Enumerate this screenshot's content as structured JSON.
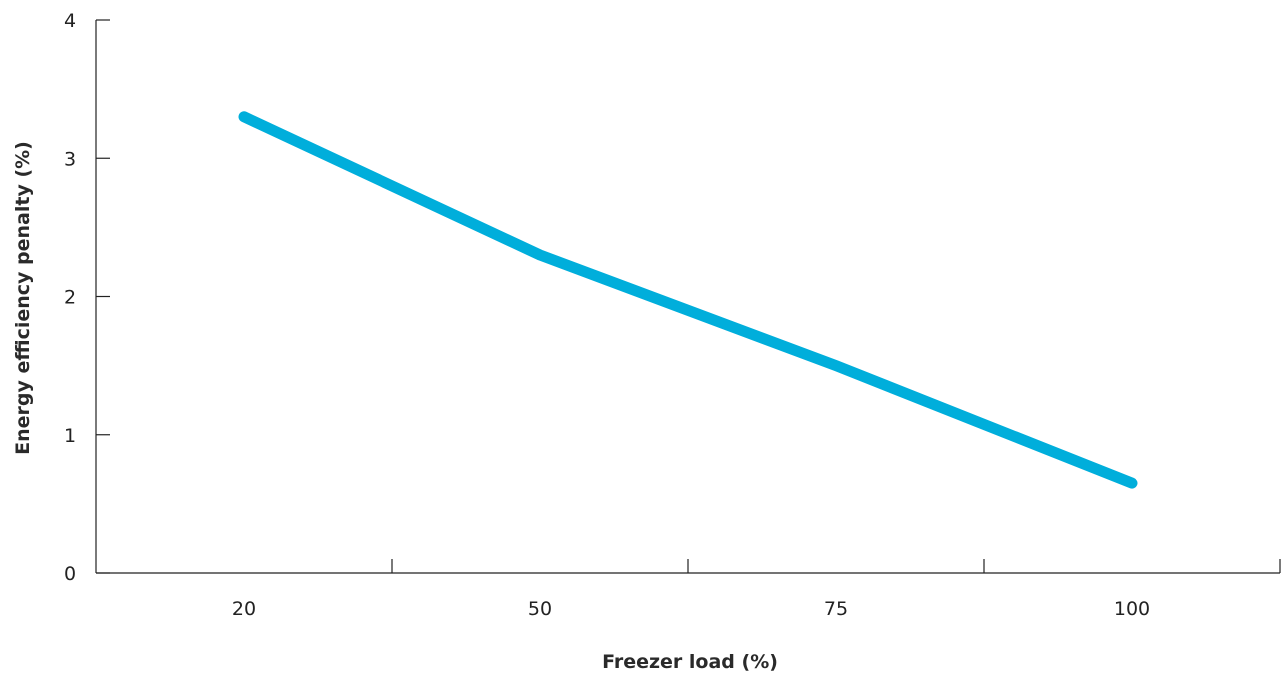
{
  "chart_data": {
    "type": "line",
    "title": "",
    "xlabel": "Freezer load (%)",
    "ylabel": "Energy efficiency penalty  (%)",
    "categories": [
      "20",
      "50",
      "75",
      "100"
    ],
    "ylim": [
      0,
      4
    ],
    "yticks": [
      "0",
      "1",
      "2",
      "3",
      "4"
    ],
    "grid": false,
    "series": [
      {
        "values": [
          3.3,
          2.3,
          1.5,
          0.65
        ],
        "color": "#00aedb"
      }
    ]
  }
}
